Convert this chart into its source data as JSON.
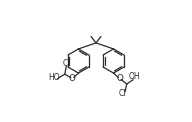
{
  "bg_color": "#ffffff",
  "line_color": "#2a2a2a",
  "line_width": 0.9,
  "font_size": 5.8,
  "fig_width": 1.92,
  "fig_height": 1.22,
  "dpi": 100,
  "xlim": [
    -0.05,
    1.05
  ],
  "ylim": [
    -0.05,
    1.05
  ]
}
